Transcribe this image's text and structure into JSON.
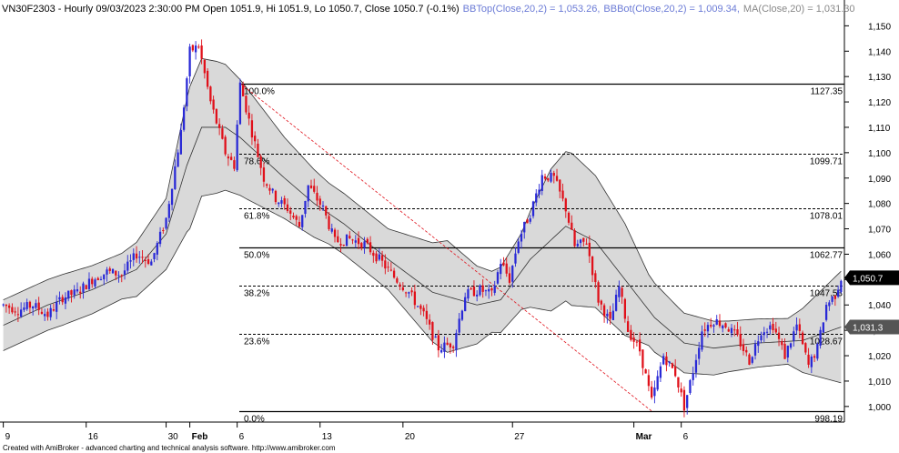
{
  "header": {
    "symbol_info": "VN30F2303 - Hourly 09/03/2023 2:30:00 PM Open 1051.9, Hi 1051.9, Lo 1050.7, Close 1050.7 (-0.1%)",
    "bbtop": "BBTop(Close,20,2) = 1,053.26,",
    "bbbot": "BBBot(Close,20,2) = 1,009.34,",
    "ma": "MA(Close,20) = 1,031.30"
  },
  "footer": "Created with AmiBroker - advanced charting and technical analysis software. http://www.amibroker.com",
  "colors": {
    "up": "#2929d6",
    "down": "#e0101a",
    "band_fill": "#d9d9d9",
    "band_line": "#333333",
    "trend_line": "#e0101a",
    "last_price_bg": "#000000",
    "ma_tag_bg": "#555555"
  },
  "chart_data": {
    "type": "candlestick",
    "ylim": [
      996,
      1153
    ],
    "y_ticks": [
      "1,150",
      "1,140",
      "1,130",
      "1,120",
      "1,110",
      "1,100",
      "1,090",
      "1,080",
      "1,070",
      "1,060",
      "1,050",
      "1,040",
      "1,030",
      "1,020",
      "1,010",
      "1,000"
    ],
    "y_tick_values": [
      1150,
      1140,
      1130,
      1120,
      1110,
      1100,
      1090,
      1080,
      1070,
      1060,
      1050,
      1040,
      1030,
      1020,
      1010,
      1000
    ],
    "x_labels": [
      "9",
      "16",
      "30",
      "Feb",
      "6",
      "13",
      "20",
      "27",
      "Mar",
      "6"
    ],
    "last_price_label": "1,050.7",
    "last_price": 1050.7,
    "ma_label": "1,031.3",
    "ma_value": 1031.3,
    "fibonacci": [
      {
        "pct": "100.0%",
        "value": 1127.35,
        "value_label": "1127.35",
        "style": "solid"
      },
      {
        "pct": "78.6%",
        "value": 1099.71,
        "value_label": "1099.71",
        "style": "dashed"
      },
      {
        "pct": "61.8%",
        "value": 1078.01,
        "value_label": "1078.01",
        "style": "dashed"
      },
      {
        "pct": "50.0%",
        "value": 1062.77,
        "value_label": "1062.77",
        "style": "solid"
      },
      {
        "pct": "38.2%",
        "value": 1047.53,
        "value_label": "1047.53",
        "style": "dashed"
      },
      {
        "pct": "23.6%",
        "value": 1028.67,
        "value_label": "1028.67",
        "style": "dashed"
      },
      {
        "pct": "0.0%",
        "value": 998.19,
        "value_label": "998.19",
        "style": "solid"
      }
    ],
    "trend_line": {
      "from_bar": 80,
      "from_value": 1127.35,
      "to_bar": 219,
      "to_value": 998.19
    },
    "bar_count": 284,
    "price_keys": [
      [
        0,
        1040
      ],
      [
        5,
        1038
      ],
      [
        10,
        1040
      ],
      [
        15,
        1036
      ],
      [
        20,
        1043
      ],
      [
        25,
        1045
      ],
      [
        30,
        1050
      ],
      [
        35,
        1053
      ],
      [
        40,
        1052
      ],
      [
        45,
        1060
      ],
      [
        50,
        1057
      ],
      [
        55,
        1074
      ],
      [
        60,
        1108
      ],
      [
        63,
        1140
      ],
      [
        66,
        1142
      ],
      [
        70,
        1120
      ],
      [
        75,
        1100
      ],
      [
        78,
        1095
      ],
      [
        80,
        1127
      ],
      [
        84,
        1108
      ],
      [
        88,
        1090
      ],
      [
        92,
        1082
      ],
      [
        96,
        1078
      ],
      [
        100,
        1071
      ],
      [
        103,
        1087
      ],
      [
        108,
        1078
      ],
      [
        112,
        1065
      ],
      [
        117,
        1066
      ],
      [
        122,
        1064
      ],
      [
        127,
        1058
      ],
      [
        132,
        1051
      ],
      [
        137,
        1045
      ],
      [
        142,
        1036
      ],
      [
        147,
        1023
      ],
      [
        152,
        1025
      ],
      [
        156,
        1044
      ],
      [
        161,
        1046
      ],
      [
        165,
        1044
      ],
      [
        168,
        1057
      ],
      [
        171,
        1050
      ],
      [
        174,
        1066
      ],
      [
        178,
        1076
      ],
      [
        182,
        1091
      ],
      [
        186,
        1090
      ],
      [
        190,
        1078
      ],
      [
        193,
        1063
      ],
      [
        197,
        1065
      ],
      [
        201,
        1042
      ],
      [
        205,
        1033
      ],
      [
        208,
        1047
      ],
      [
        211,
        1030
      ],
      [
        215,
        1022
      ],
      [
        219,
        1002
      ],
      [
        223,
        1020
      ],
      [
        227,
        1013
      ],
      [
        230,
        1000
      ],
      [
        233,
        1014
      ],
      [
        236,
        1030
      ],
      [
        240,
        1034
      ],
      [
        244,
        1032
      ],
      [
        248,
        1027
      ],
      [
        252,
        1018
      ],
      [
        256,
        1030
      ],
      [
        260,
        1032
      ],
      [
        264,
        1020
      ],
      [
        268,
        1032
      ],
      [
        272,
        1016
      ],
      [
        275,
        1023
      ],
      [
        278,
        1040
      ],
      [
        281,
        1044
      ],
      [
        283,
        1050.7
      ]
    ],
    "ma_keys": [
      [
        0,
        1032
      ],
      [
        15,
        1040
      ],
      [
        30,
        1046
      ],
      [
        45,
        1054
      ],
      [
        55,
        1068
      ],
      [
        62,
        1095
      ],
      [
        67,
        1110
      ],
      [
        75,
        1110
      ],
      [
        80,
        1106
      ],
      [
        95,
        1090
      ],
      [
        105,
        1080
      ],
      [
        115,
        1072
      ],
      [
        130,
        1058
      ],
      [
        145,
        1045
      ],
      [
        160,
        1040
      ],
      [
        168,
        1042
      ],
      [
        178,
        1058
      ],
      [
        190,
        1071
      ],
      [
        200,
        1065
      ],
      [
        210,
        1050
      ],
      [
        220,
        1035
      ],
      [
        230,
        1025
      ],
      [
        240,
        1023
      ],
      [
        255,
        1025
      ],
      [
        270,
        1026
      ],
      [
        283,
        1031.3
      ]
    ],
    "band_width_keys": [
      [
        0,
        10
      ],
      [
        20,
        10
      ],
      [
        40,
        9
      ],
      [
        55,
        14
      ],
      [
        63,
        28
      ],
      [
        72,
        26
      ],
      [
        82,
        22
      ],
      [
        95,
        16
      ],
      [
        110,
        12
      ],
      [
        130,
        12
      ],
      [
        150,
        22
      ],
      [
        165,
        12
      ],
      [
        175,
        15
      ],
      [
        185,
        28
      ],
      [
        192,
        30
      ],
      [
        200,
        26
      ],
      [
        210,
        22
      ],
      [
        218,
        14
      ],
      [
        228,
        12
      ],
      [
        245,
        10
      ],
      [
        265,
        9
      ],
      [
        283,
        22
      ]
    ]
  }
}
